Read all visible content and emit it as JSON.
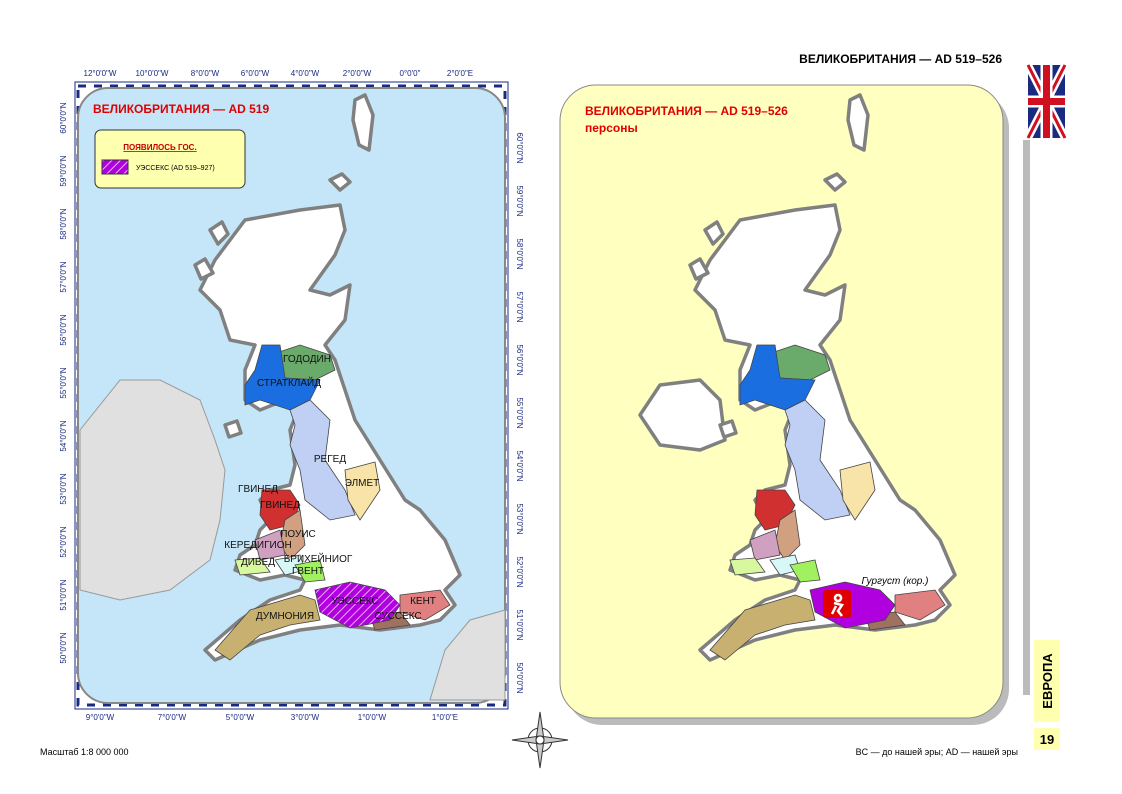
{
  "header": {
    "title": "ВЕЛИКОБРИТАНИЯ — AD 519–526"
  },
  "left_map": {
    "title": "ВЕЛИКОБРИТАНИЯ — AD 519",
    "legend": {
      "heading": "ПОЯВИЛОСЬ ГОС.",
      "items": [
        "УЭССЕКС (AD 519–927)"
      ]
    },
    "regions": [
      "ГОДОДИН",
      "СТРАТКЛАЙД",
      "РЕГЕД",
      "ЭЛМЕТ",
      "ГВИНЕД",
      "ГВИНЕД",
      "ПОУИС",
      "КЕРЕДИГИОН",
      "БРИХЕЙНИОГ",
      "ДИВЕД",
      "ГВЕНТ",
      "УЭССЕКС",
      "КЕНТ",
      "СУССЕКС",
      "ДУМНОНИЯ"
    ],
    "top_coords": [
      "12°0'0\"W",
      "10°0'0\"W",
      "8°0'0\"W",
      "6°0'0\"W",
      "4°0'0\"W",
      "2°0'0\"W",
      "0°0'0\"",
      "2°0'0\"E"
    ],
    "bottom_coords": [
      "9°0'0\"W",
      "7°0'0\"W",
      "5°0'0\"W",
      "3°0'0\"W",
      "1°0'0\"W",
      "1°0'0\"E"
    ],
    "lat_coords": [
      "60°0'0\"N",
      "59°0'0\"N",
      "58°0'0\"N",
      "57°0'0\"N",
      "56°0'0\"N",
      "55°0'0\"N",
      "54°0'0\"N",
      "53°0'0\"N",
      "52°0'0\"N",
      "51°0'0\"N",
      "50°0'0\"N"
    ]
  },
  "right_map": {
    "title": "ВЕЛИКОБРИТАНИЯ — AD 519–526",
    "subtitle": "персоны",
    "persons": [
      "Гургуст (кор.)"
    ]
  },
  "footer": {
    "scale": "Масштаб 1:8 000 000",
    "note": "BC — до нашей эры; AD — нашей эры",
    "page": "19",
    "section": "ЕВРОПА"
  }
}
